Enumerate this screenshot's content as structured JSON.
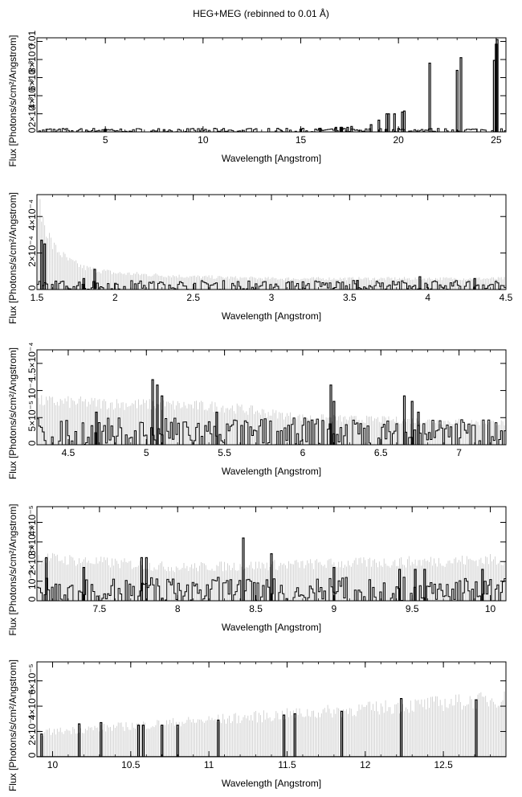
{
  "title": "HEG+MEG (rebinned to 0.01 Å)",
  "chart_data": [
    {
      "type": "line",
      "xlabel": "Wavelength [Angstrom]",
      "ylabel": "Flux [Photons/s/cm²/Angstrom]",
      "xlim": [
        1.5,
        25.5
      ],
      "ylim": [
        0,
        0.0104
      ],
      "xticks": [
        "5",
        "10",
        "15",
        "20",
        "25"
      ],
      "xtick_values": [
        5,
        10,
        15,
        20,
        25
      ],
      "yticks": [
        "0",
        "2×10⁻³",
        "4×10⁻³",
        "6×10⁻³",
        "8×10⁻³",
        "0.01"
      ],
      "ytick_values": [
        0,
        0.002,
        0.004,
        0.006,
        0.008,
        0.01
      ],
      "grid": false,
      "lines": [
        {
          "x": 5.0,
          "y": 0.0003
        },
        {
          "x": 15.0,
          "y": 0.0003
        },
        {
          "x": 16.0,
          "y": 0.0004
        },
        {
          "x": 16.8,
          "y": 0.0005
        },
        {
          "x": 17.05,
          "y": 0.0005
        },
        {
          "x": 17.1,
          "y": 0.0005
        },
        {
          "x": 17.4,
          "y": 0.0005
        },
        {
          "x": 17.6,
          "y": 0.0006
        },
        {
          "x": 18.6,
          "y": 0.0008
        },
        {
          "x": 19.0,
          "y": 0.0013
        },
        {
          "x": 19.4,
          "y": 0.002
        },
        {
          "x": 19.5,
          "y": 0.002
        },
        {
          "x": 19.8,
          "y": 0.002
        },
        {
          "x": 20.2,
          "y": 0.0022
        },
        {
          "x": 20.3,
          "y": 0.0023
        },
        {
          "x": 21.6,
          "y": 0.0076
        },
        {
          "x": 23.0,
          "y": 0.0068
        },
        {
          "x": 23.2,
          "y": 0.0082
        },
        {
          "x": 24.9,
          "y": 0.0079
        },
        {
          "x": 25.0,
          "y": 0.0097
        },
        {
          "x": 25.05,
          "y": 0.0102
        }
      ],
      "noise_level": 0.0002
    },
    {
      "type": "line",
      "xlabel": "Wavelength [Angstrom]",
      "ylabel": "Flux [Photons/s/cm²/Angstrom]",
      "xlim": [
        1.5,
        4.5
      ],
      "ylim": [
        0,
        0.00052
      ],
      "xticks": [
        "1.5",
        "2",
        "2.5",
        "3",
        "3.5",
        "4",
        "4.5"
      ],
      "xtick_values": [
        1.5,
        2,
        2.5,
        3,
        3.5,
        4,
        4.5
      ],
      "yticks": [
        "0",
        "2×10⁻⁴",
        "4×10⁻⁴"
      ],
      "ytick_values": [
        0,
        0.0002,
        0.0004
      ],
      "grid": false,
      "error_envelope": [
        [
          1.5,
          0.00048
        ],
        [
          1.6,
          0.00024
        ],
        [
          1.7,
          0.00016
        ],
        [
          1.8,
          0.00012
        ],
        [
          2.0,
          9e-05
        ],
        [
          2.5,
          7e-05
        ],
        [
          3.0,
          6e-05
        ],
        [
          4.5,
          6e-05
        ]
      ],
      "peaks": [
        [
          1.53,
          0.00027
        ],
        [
          1.55,
          0.00025
        ],
        [
          1.87,
          0.00011
        ],
        [
          1.8,
          6e-05
        ],
        [
          3.95,
          7e-05
        ],
        [
          3.55,
          5e-05
        ],
        [
          4.3,
          6e-05
        ]
      ],
      "noise_level": 2.5e-05
    },
    {
      "type": "line",
      "xlabel": "Wavelength [Angstrom]",
      "ylabel": "Flux [Photons/s/cm²/Angstrom]",
      "xlim": [
        4.3,
        7.3
      ],
      "ylim": [
        0,
        0.000175
      ],
      "xticks": [
        "4.5",
        "5",
        "5.5",
        "6",
        "6.5",
        "7"
      ],
      "xtick_values": [
        4.5,
        5,
        5.5,
        6,
        6.5,
        7
      ],
      "yticks": [
        "0",
        "5×10⁻⁵",
        "10⁻⁴",
        "1.5×10⁻⁴"
      ],
      "ytick_values": [
        0,
        5e-05,
        0.0001,
        0.00015
      ],
      "grid": false,
      "error_envelope": [
        [
          4.3,
          8e-05
        ],
        [
          5.5,
          7e-05
        ],
        [
          6.0,
          5e-05
        ],
        [
          7.3,
          4e-05
        ]
      ],
      "peaks": [
        [
          5.04,
          0.00012
        ],
        [
          5.07,
          0.00011
        ],
        [
          5.1,
          9e-05
        ],
        [
          6.18,
          0.00011
        ],
        [
          6.2,
          8e-05
        ],
        [
          6.65,
          9e-05
        ],
        [
          6.7,
          8e-05
        ],
        [
          6.74,
          6e-05
        ],
        [
          4.68,
          6e-05
        ],
        [
          5.45,
          6e-05
        ]
      ],
      "noise_level": 2.5e-05
    },
    {
      "type": "line",
      "xlabel": "Wavelength [Angstrom]",
      "ylabel": "Flux [Photons/s/cm²/Angstrom]",
      "xlim": [
        7.1,
        10.1
      ],
      "ylim": [
        0,
        4.8e-05
      ],
      "xticks": [
        "7.5",
        "8",
        "8.5",
        "9",
        "9.5",
        "10"
      ],
      "xtick_values": [
        7.5,
        8,
        8.5,
        9,
        9.5,
        10
      ],
      "yticks": [
        "0",
        "10⁻⁵",
        "2×10⁻⁵",
        "3×10⁻⁵",
        "4×10⁻⁵"
      ],
      "ytick_values": [
        0,
        1e-05,
        2e-05,
        3e-05,
        4e-05
      ],
      "grid": false,
      "error_envelope": [
        [
          7.1,
          2.2e-05
        ],
        [
          8.0,
          1.7e-05
        ],
        [
          8.5,
          1.8e-05
        ],
        [
          9.0,
          1.9e-05
        ],
        [
          10.1,
          2.1e-05
        ]
      ],
      "peaks": [
        [
          7.16,
          2.2e-05
        ],
        [
          7.4,
          1.7e-05
        ],
        [
          7.77,
          2.2e-05
        ],
        [
          7.8,
          2.2e-05
        ],
        [
          8.42,
          3.2e-05
        ],
        [
          8.6,
          2.4e-05
        ],
        [
          9.0,
          1.7e-05
        ],
        [
          9.42,
          1.6e-05
        ],
        [
          9.52,
          1.6e-05
        ],
        [
          9.58,
          1.6e-05
        ],
        [
          9.95,
          1.6e-05
        ]
      ],
      "noise_level": 6e-06
    },
    {
      "type": "line",
      "xlabel": "Wavelength [Angstrom]",
      "ylabel": "Flux [Photons/s/cm²/Angstrom]",
      "xlim": [
        9.9,
        12.9
      ],
      "ylim": [
        0,
        7.5e-05
      ],
      "xticks": [
        "10",
        "10.5",
        "11",
        "11.5",
        "12",
        "12.5"
      ],
      "xtick_values": [
        10,
        10.5,
        11,
        11.5,
        12,
        12.5
      ],
      "yticks": [
        "0",
        "2×10⁻⁵",
        "4×10⁻⁵",
        "6×10⁻⁵"
      ],
      "ytick_values": [
        0,
        2e-05,
        4e-05,
        6e-05
      ],
      "grid": false,
      "error_envelope": [
        [
          9.9,
          1.9e-05
        ],
        [
          12.9,
          4.6e-05
        ]
      ],
      "peaks": [
        [
          9.93,
          1.8e-05
        ],
        [
          10.17,
          2.6e-05
        ],
        [
          10.31,
          2.7e-05
        ],
        [
          10.55,
          2.5e-05
        ],
        [
          10.58,
          2.5e-05
        ],
        [
          10.7,
          2.5e-05
        ],
        [
          10.8,
          2.5e-05
        ],
        [
          11.06,
          2.9e-05
        ],
        [
          11.48,
          3.3e-05
        ],
        [
          11.55,
          3.4e-05
        ],
        [
          11.85,
          3.6e-05
        ],
        [
          12.23,
          4.6e-05
        ],
        [
          12.71,
          4.5e-05
        ]
      ],
      "noise_level": 0
    }
  ]
}
